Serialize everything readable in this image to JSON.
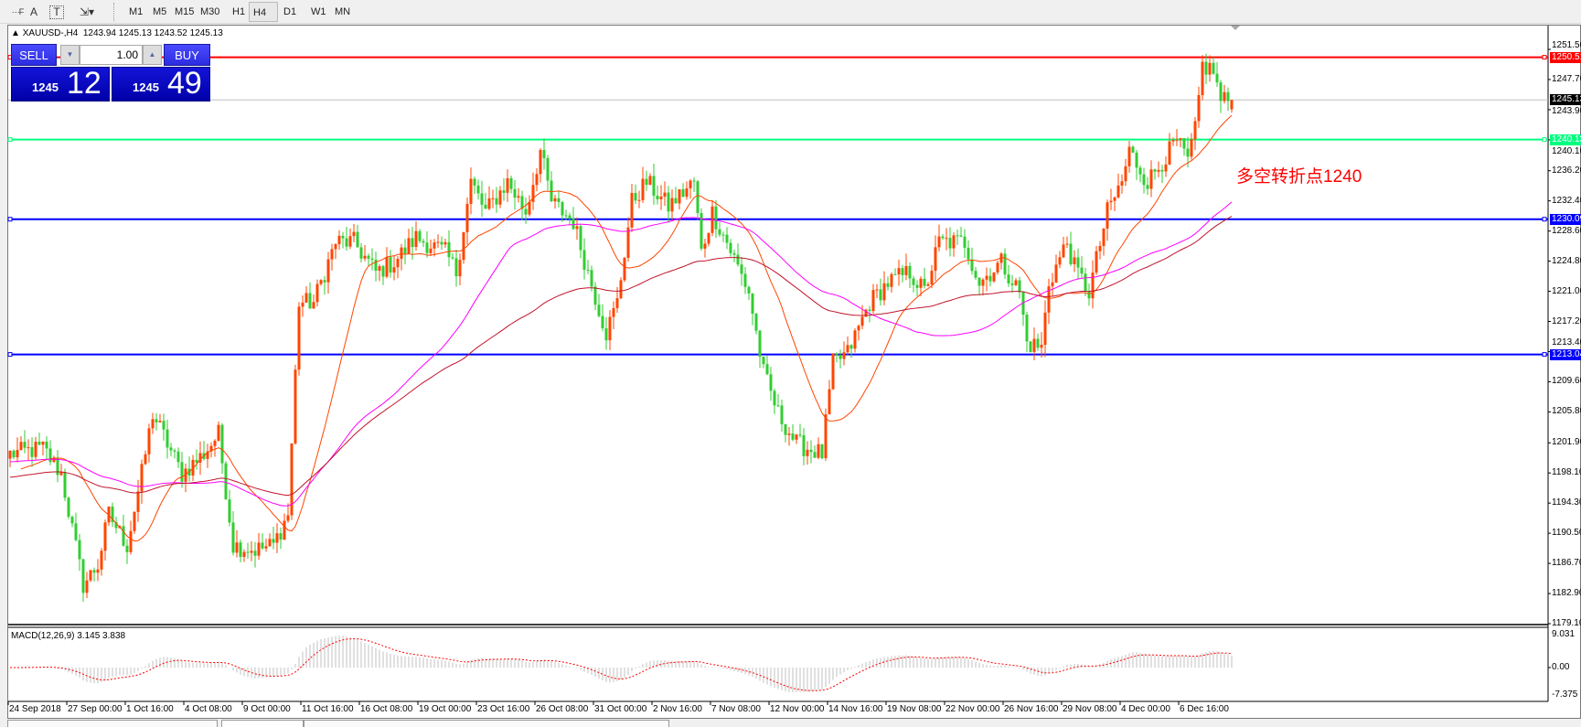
{
  "toolbar": {
    "tools": [
      {
        "icon": "grid-f-icon"
      },
      {
        "icon": "text-a-icon",
        "label": "A"
      },
      {
        "icon": "text-label-icon",
        "label": "T"
      },
      {
        "icon": "arrows-dropdown-icon"
      }
    ],
    "timeframes": [
      "M1",
      "M5",
      "M15",
      "M30",
      "H1",
      "H4",
      "D1",
      "W1",
      "MN"
    ],
    "active_timeframe": "H4"
  },
  "chart": {
    "symbol": "XAUUSD-,H4",
    "ohlc": "1243.94 1245.13 1243.52 1245.13"
  },
  "trade_panel": {
    "sell_label": "SELL",
    "buy_label": "BUY",
    "lots": "1.00",
    "sell_prefix": "1245",
    "sell_big": "12",
    "buy_prefix": "1245",
    "buy_big": "49"
  },
  "annotation": "多空转折点1240",
  "macd": {
    "label": "MACD(12,26,9) 3.145 3.838",
    "scale_top": "9.031",
    "scale_zero": "0.00",
    "scale_bottom": "-7.375"
  },
  "chart_data": {
    "type": "candlestick",
    "price_ticks": [
      "1251.50",
      "1247.70",
      "1243.90",
      "1240.10",
      "1236.20",
      "1232.40",
      "1228.60",
      "1224.80",
      "1221.00",
      "1217.20",
      "1213.40",
      "1209.60",
      "1205.80",
      "1201.90",
      "1198.10",
      "1194.30",
      "1190.50",
      "1186.70",
      "1182.90",
      "1179.10"
    ],
    "ylim": [
      1179.1,
      1251.5
    ],
    "levels": [
      {
        "value": "1250.51",
        "color": "#ff0000"
      },
      {
        "value": "1240.13",
        "color": "#00ff7f"
      },
      {
        "value": "1230.09",
        "color": "#0000ff"
      },
      {
        "value": "1213.04",
        "color": "#0000ff"
      }
    ],
    "current_price": "1245.13",
    "x_labels": [
      "24 Sep 2018",
      "27 Sep 00:00",
      "1 Oct 16:00",
      "4 Oct 08:00",
      "9 Oct 00:00",
      "11 Oct 16:00",
      "16 Oct 08:00",
      "19 Oct 00:00",
      "23 Oct 16:00",
      "26 Oct 08:00",
      "31 Oct 00:00",
      "2 Nov 16:00",
      "7 Nov 08:00",
      "12 Nov 00:00",
      "14 Nov 16:00",
      "19 Nov 08:00",
      "22 Nov 00:00",
      "26 Nov 16:00",
      "29 Nov 08:00",
      "4 Dec 00:00",
      "6 Dec 16:00"
    ],
    "close_anchors": [
      [
        0,
        1200.5
      ],
      [
        9,
        1201.2
      ],
      [
        14,
        1198
      ],
      [
        20,
        1184
      ],
      [
        24,
        1186.5
      ],
      [
        27,
        1192.9
      ],
      [
        32,
        1189
      ],
      [
        36,
        1198
      ],
      [
        39,
        1205.6
      ],
      [
        43,
        1201.8
      ],
      [
        47,
        1198
      ],
      [
        53,
        1200.5
      ],
      [
        57,
        1203
      ],
      [
        61,
        1189
      ],
      [
        67,
        1188.4
      ],
      [
        72,
        1189
      ],
      [
        76,
        1192.9
      ],
      [
        79,
        1219.6
      ],
      [
        83,
        1219.6
      ],
      [
        89,
        1227.2
      ],
      [
        94,
        1227.2
      ],
      [
        100,
        1223.4
      ],
      [
        105,
        1224.7
      ],
      [
        111,
        1227.8
      ],
      [
        119,
        1225.9
      ],
      [
        122,
        1223.4
      ],
      [
        126,
        1234.8
      ],
      [
        130,
        1231
      ],
      [
        136,
        1234.8
      ],
      [
        141,
        1231
      ],
      [
        145,
        1238.7
      ],
      [
        148,
        1232.3
      ],
      [
        154,
        1229.8
      ],
      [
        158,
        1223.4
      ],
      [
        163,
        1215.8
      ],
      [
        166,
        1219.6
      ],
      [
        170,
        1232.3
      ],
      [
        174,
        1234.8
      ],
      [
        180,
        1231.7
      ],
      [
        187,
        1234.8
      ],
      [
        189,
        1225.9
      ],
      [
        192,
        1231
      ],
      [
        196,
        1227.2
      ],
      [
        202,
        1220.9
      ],
      [
        206,
        1210.7
      ],
      [
        210,
        1205.6
      ],
      [
        215,
        1201.8
      ],
      [
        222,
        1200.5
      ],
      [
        225,
        1211.9
      ],
      [
        229,
        1213.2
      ],
      [
        235,
        1219.6
      ],
      [
        240,
        1222.1
      ],
      [
        246,
        1223.4
      ],
      [
        250,
        1220.9
      ],
      [
        254,
        1227.2
      ],
      [
        261,
        1227.2
      ],
      [
        265,
        1222.1
      ],
      [
        271,
        1224.7
      ],
      [
        276,
        1220.9
      ],
      [
        278,
        1214.5
      ],
      [
        282,
        1213.9
      ],
      [
        284,
        1222.1
      ],
      [
        289,
        1227.2
      ],
      [
        291,
        1224
      ],
      [
        295,
        1220.9
      ],
      [
        300,
        1231
      ],
      [
        304,
        1234.8
      ],
      [
        306,
        1238.7
      ],
      [
        311,
        1234.8
      ],
      [
        315,
        1237.4
      ],
      [
        319,
        1239.9
      ],
      [
        322,
        1237.4
      ],
      [
        324,
        1241.2
      ],
      [
        326,
        1249.5
      ],
      [
        329,
        1248.8
      ],
      [
        331,
        1245
      ],
      [
        334,
        1245.13
      ]
    ],
    "last_bar": {
      "open": 1243.94,
      "high": 1245.13,
      "low": 1243.52,
      "close": 1245.13
    },
    "colors": {
      "up": "#ff4500",
      "down": "#32cd32",
      "ma_fast": "#ff4500",
      "ma_mid": "#ff00ff",
      "ma_slow": "#c0142a",
      "macd_hist": "#c0c0c0",
      "macd_signal": "#ff0000",
      "current_line": "#c0c0c0",
      "current_label": "#000000"
    }
  }
}
